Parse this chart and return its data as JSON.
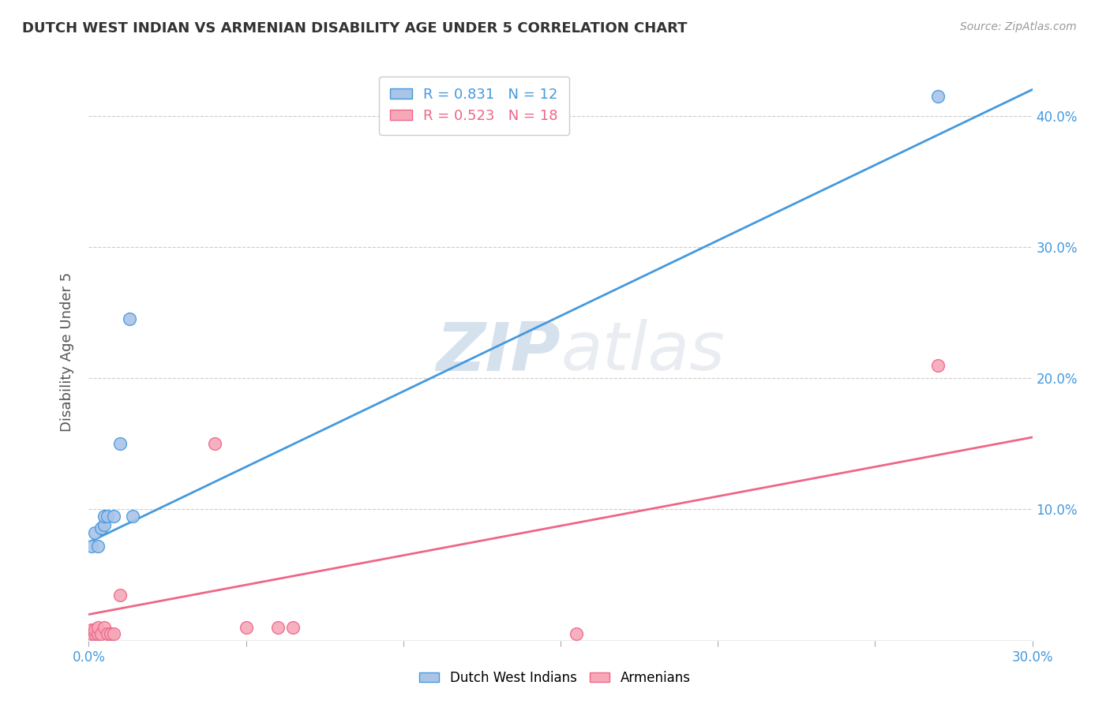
{
  "title": "DUTCH WEST INDIAN VS ARMENIAN DISABILITY AGE UNDER 5 CORRELATION CHART",
  "source": "Source: ZipAtlas.com",
  "ylabel": "Disability Age Under 5",
  "xlim": [
    0.0,
    0.3
  ],
  "ylim": [
    0.0,
    0.44
  ],
  "xticks": [
    0.0,
    0.05,
    0.1,
    0.15,
    0.2,
    0.25,
    0.3
  ],
  "xtick_labels_shown": {
    "0.0": "0.0%",
    "0.30": "30.0%"
  },
  "yticks": [
    0.0,
    0.1,
    0.2,
    0.3,
    0.4
  ],
  "ytick_labels_right": [
    "",
    "10.0%",
    "20.0%",
    "30.0%",
    "40.0%"
  ],
  "grid_color": "#cccccc",
  "background_color": "#ffffff",
  "dutch_color": "#aac4e8",
  "armenian_color": "#f7a8b8",
  "dutch_line_color": "#4499dd",
  "armenian_line_color": "#ee6688",
  "legend_R_dutch": "0.831",
  "legend_N_dutch": "12",
  "legend_R_armenian": "0.523",
  "legend_N_armenian": "18",
  "watermark_zip": "ZIP",
  "watermark_atlas": "atlas",
  "dutch_points_x": [
    0.001,
    0.002,
    0.003,
    0.004,
    0.005,
    0.005,
    0.006,
    0.008,
    0.01,
    0.013,
    0.014,
    0.27
  ],
  "dutch_points_y": [
    0.072,
    0.082,
    0.072,
    0.086,
    0.088,
    0.095,
    0.095,
    0.095,
    0.15,
    0.245,
    0.095,
    0.415
  ],
  "armenian_points_x": [
    0.001,
    0.001,
    0.002,
    0.002,
    0.003,
    0.003,
    0.004,
    0.005,
    0.006,
    0.007,
    0.008,
    0.01,
    0.04,
    0.05,
    0.06,
    0.065,
    0.155,
    0.27
  ],
  "armenian_points_y": [
    0.005,
    0.008,
    0.005,
    0.008,
    0.005,
    0.01,
    0.005,
    0.01,
    0.005,
    0.005,
    0.005,
    0.035,
    0.15,
    0.01,
    0.01,
    0.01,
    0.005,
    0.21
  ],
  "dutch_line_x0": 0.0,
  "dutch_line_x1": 0.3,
  "dutch_line_y0": 0.075,
  "dutch_line_y1": 0.42,
  "armenian_line_x0": 0.0,
  "armenian_line_x1": 0.3,
  "armenian_line_y0": 0.02,
  "armenian_line_y1": 0.155
}
